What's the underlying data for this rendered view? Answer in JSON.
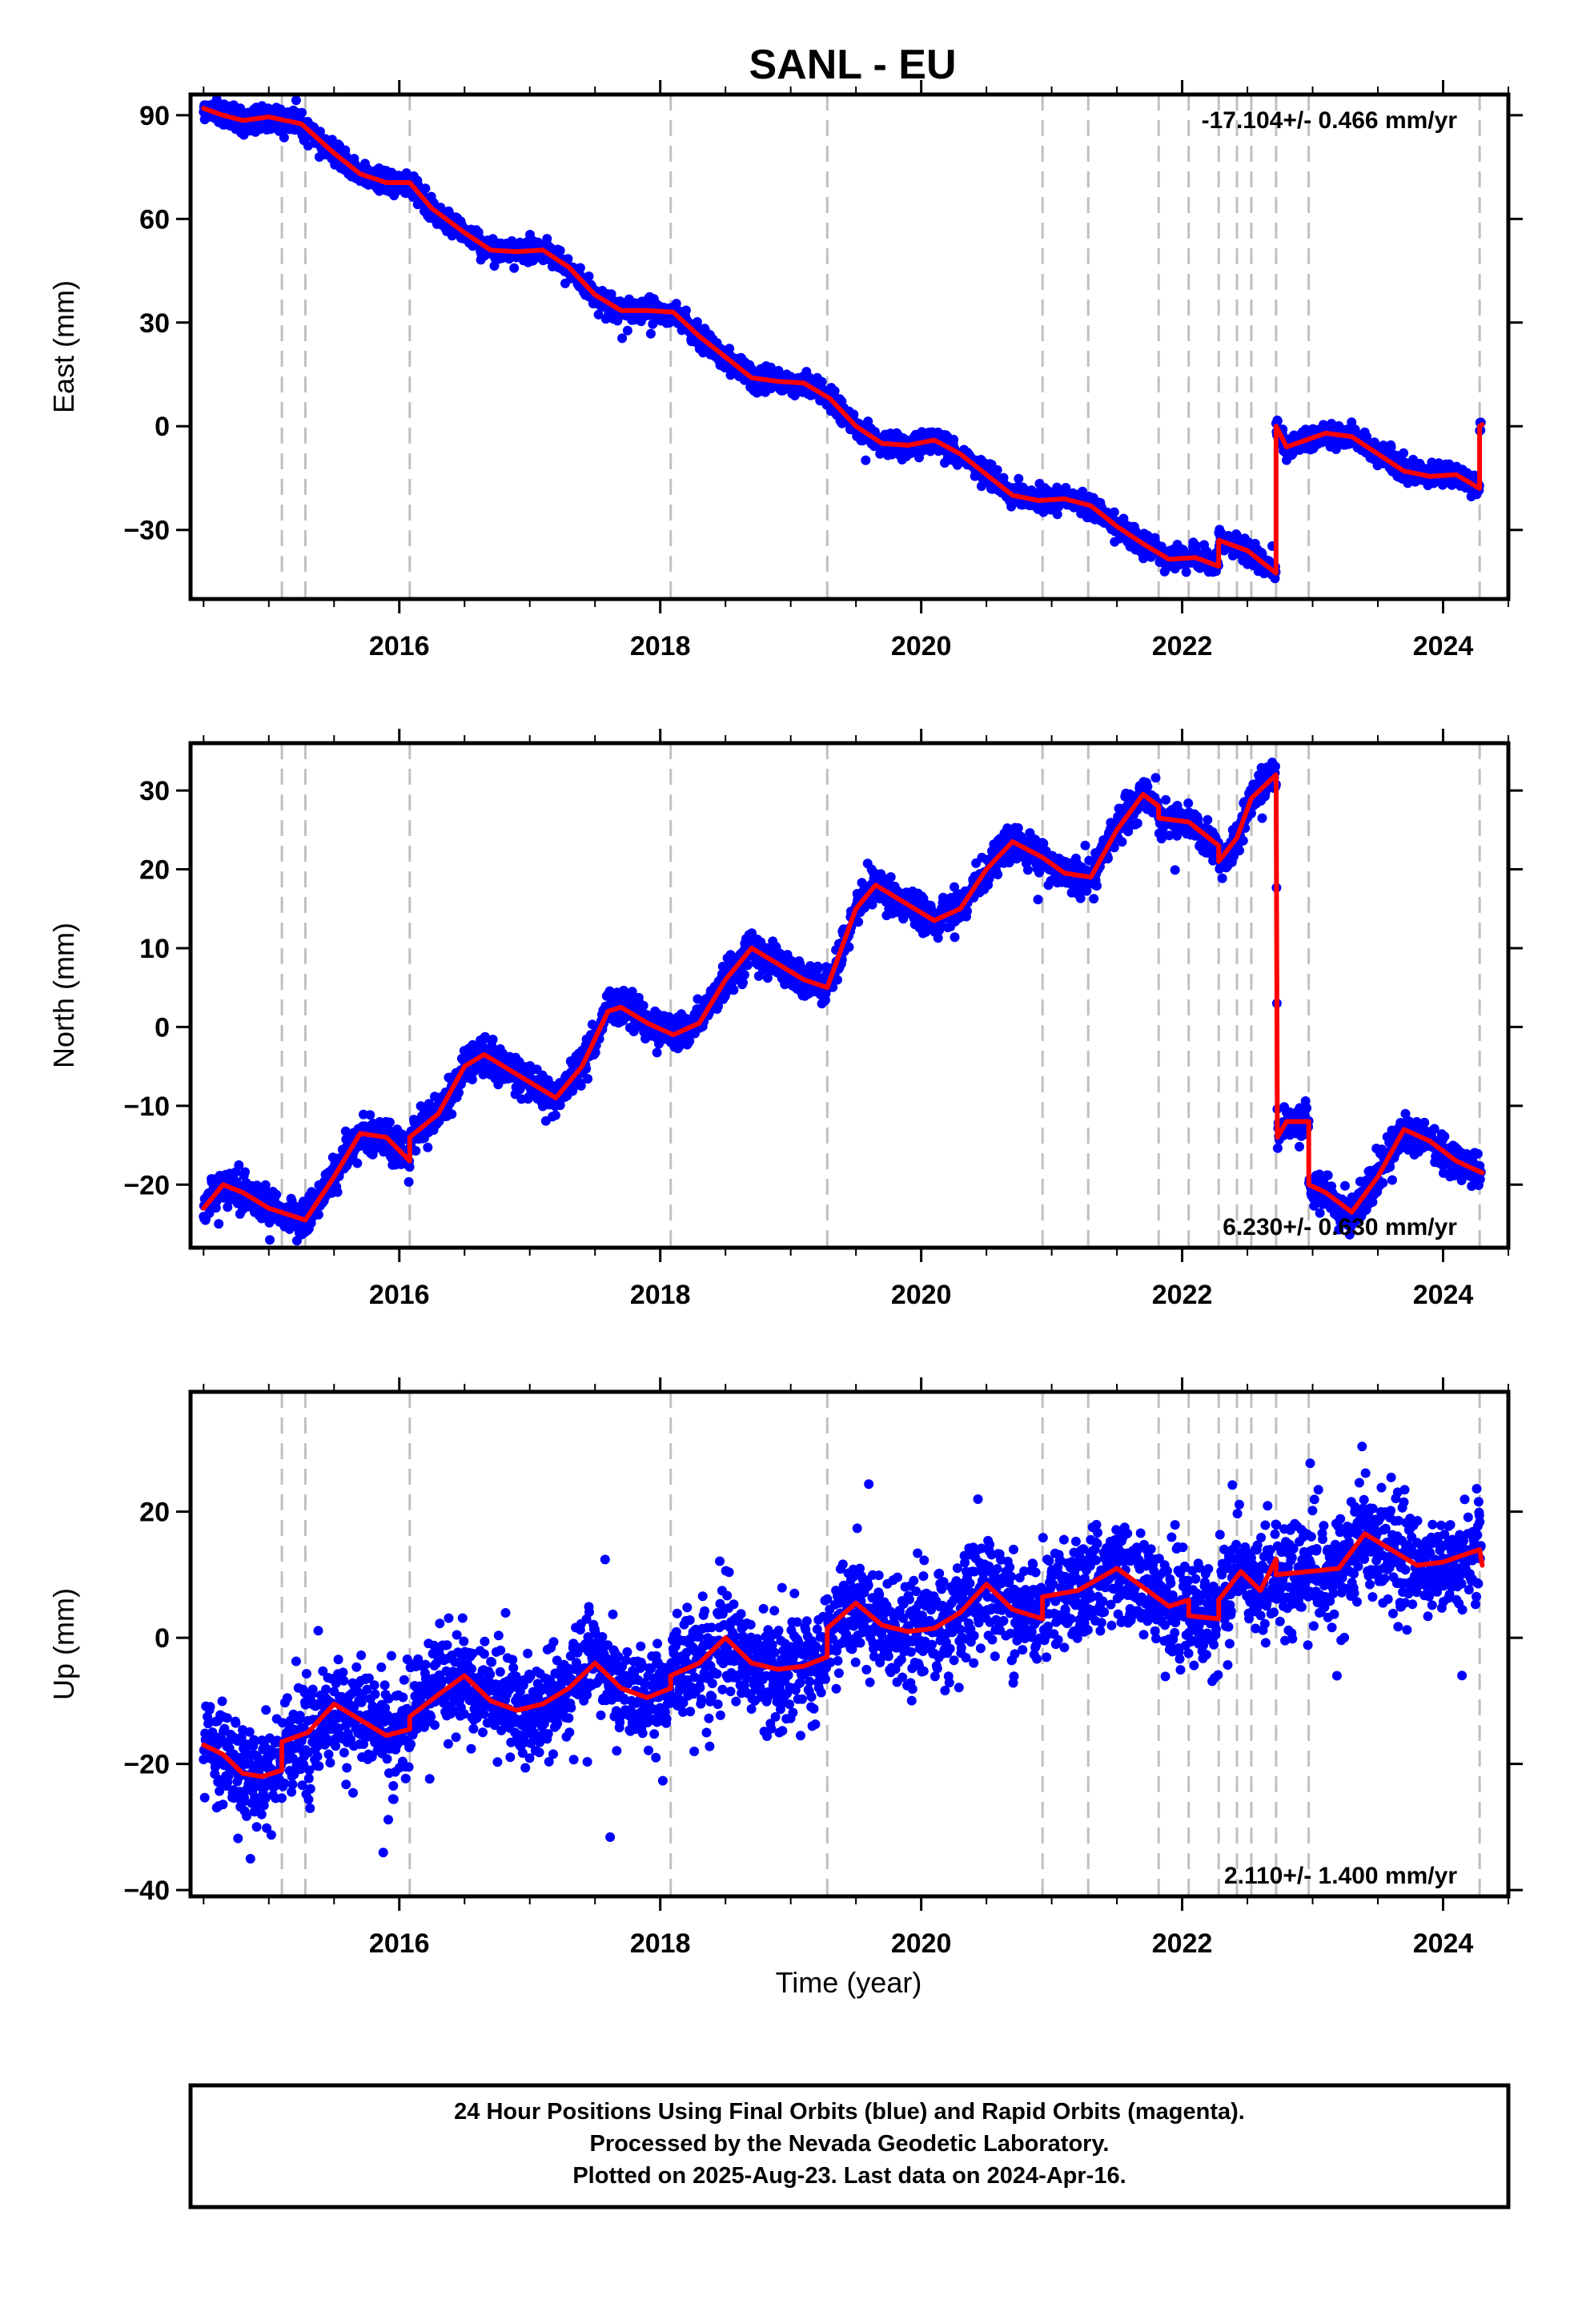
{
  "title": "SANL - EU",
  "x_axis_label": "Time (year)",
  "footer": [
    "24 Hour Positions Using Final Orbits (blue) and Rapid Orbits (magenta).",
    "Processed by the Nevada Geodetic Laboratory.",
    "Plotted on 2025-Aug-23. Last data on 2024-Apr-16."
  ],
  "colors": {
    "points": "#0000ff",
    "model": "#ff0000",
    "event_lines": "#c0c0c0",
    "frame": "#000000"
  },
  "chart_data": [
    {
      "type": "scatter",
      "component": "East",
      "ylabel": "East (mm)",
      "rate": "-17.104+/- 0.466 mm/yr",
      "rate_position": "top-right",
      "xlim": [
        2014.4,
        2024.5
      ],
      "ylim": [
        -50,
        96
      ],
      "x_ticks": [
        2016,
        2018,
        2020,
        2022,
        2024
      ],
      "y_ticks": [
        -30,
        0,
        30,
        60,
        90
      ],
      "scatter_sd": 1.6,
      "event_lines": [
        2015.1,
        2015.28,
        2016.08,
        2018.08,
        2019.28,
        2020.93,
        2021.28,
        2021.82,
        2022.05,
        2022.28,
        2022.42,
        2022.53,
        2022.72,
        2022.97,
        2024.28
      ],
      "model": [
        [
          2014.5,
          92
        ],
        [
          2014.65,
          90
        ],
        [
          2014.8,
          88.5
        ],
        [
          2015.0,
          89.5
        ],
        [
          2015.25,
          87.5
        ],
        [
          2015.5,
          79
        ],
        [
          2015.7,
          73
        ],
        [
          2015.9,
          70.5
        ],
        [
          2016.08,
          70.5
        ],
        [
          2016.25,
          63
        ],
        [
          2016.5,
          56
        ],
        [
          2016.7,
          51
        ],
        [
          2016.9,
          50.5
        ],
        [
          2017.1,
          51
        ],
        [
          2017.3,
          46
        ],
        [
          2017.5,
          38
        ],
        [
          2017.7,
          33.5
        ],
        [
          2017.9,
          33.5
        ],
        [
          2018.1,
          33
        ],
        [
          2018.3,
          26
        ],
        [
          2018.5,
          20
        ],
        [
          2018.7,
          14
        ],
        [
          2018.9,
          13
        ],
        [
          2019.1,
          12.5
        ],
        [
          2019.3,
          8
        ],
        [
          2019.5,
          0
        ],
        [
          2019.7,
          -5
        ],
        [
          2019.9,
          -5.5
        ],
        [
          2020.1,
          -4
        ],
        [
          2020.3,
          -8
        ],
        [
          2020.5,
          -14
        ],
        [
          2020.7,
          -20
        ],
        [
          2020.9,
          -21.5
        ],
        [
          2021.1,
          -21
        ],
        [
          2021.3,
          -23
        ],
        [
          2021.5,
          -29
        ],
        [
          2021.7,
          -34
        ],
        [
          2021.9,
          -38.5
        ],
        [
          2022.1,
          -38
        ],
        [
          2022.28,
          -40.5
        ],
        [
          2022.28,
          -33
        ],
        [
          2022.5,
          -36
        ],
        [
          2022.72,
          -42.5
        ],
        [
          2022.72,
          0
        ],
        [
          2022.8,
          -6
        ],
        [
          2022.95,
          -4
        ],
        [
          2023.1,
          -2
        ],
        [
          2023.3,
          -3
        ],
        [
          2023.5,
          -8
        ],
        [
          2023.7,
          -13
        ],
        [
          2023.9,
          -14.5
        ],
        [
          2024.1,
          -14
        ],
        [
          2024.28,
          -18
        ],
        [
          2024.28,
          0
        ],
        [
          2024.3,
          0.5
        ]
      ]
    },
    {
      "type": "scatter",
      "component": "North",
      "ylabel": "North (mm)",
      "rate": "6.230+/- 0.630 mm/yr",
      "rate_position": "bottom-right",
      "xlim": [
        2014.4,
        2024.5
      ],
      "ylim": [
        -28,
        36
      ],
      "x_ticks": [
        2016,
        2018,
        2020,
        2022,
        2024
      ],
      "y_ticks": [
        -20,
        -10,
        0,
        10,
        20,
        30
      ],
      "scatter_sd": 1.1,
      "event_lines": [
        2015.1,
        2015.28,
        2016.08,
        2018.08,
        2019.28,
        2020.93,
        2021.28,
        2021.82,
        2022.05,
        2022.28,
        2022.42,
        2022.53,
        2022.72,
        2022.97,
        2024.28
      ],
      "model": [
        [
          2014.5,
          -23
        ],
        [
          2014.65,
          -20
        ],
        [
          2014.8,
          -21
        ],
        [
          2015.0,
          -23
        ],
        [
          2015.28,
          -24.5
        ],
        [
          2015.5,
          -19
        ],
        [
          2015.7,
          -13.5
        ],
        [
          2015.9,
          -14
        ],
        [
          2016.08,
          -17
        ],
        [
          2016.08,
          -14
        ],
        [
          2016.3,
          -11
        ],
        [
          2016.5,
          -5
        ],
        [
          2016.65,
          -3.5
        ],
        [
          2016.9,
          -6
        ],
        [
          2017.2,
          -9
        ],
        [
          2017.4,
          -5
        ],
        [
          2017.6,
          2
        ],
        [
          2017.7,
          2.5
        ],
        [
          2017.9,
          0.5
        ],
        [
          2018.1,
          -1
        ],
        [
          2018.3,
          0.5
        ],
        [
          2018.5,
          6
        ],
        [
          2018.7,
          10
        ],
        [
          2018.9,
          8
        ],
        [
          2019.1,
          6
        ],
        [
          2019.28,
          5
        ],
        [
          2019.5,
          15
        ],
        [
          2019.65,
          18
        ],
        [
          2019.9,
          15.5
        ],
        [
          2020.1,
          13.5
        ],
        [
          2020.3,
          15
        ],
        [
          2020.5,
          20
        ],
        [
          2020.7,
          23.5
        ],
        [
          2020.93,
          21.5
        ],
        [
          2021.1,
          19.5
        ],
        [
          2021.3,
          19
        ],
        [
          2021.5,
          25
        ],
        [
          2021.7,
          29.5
        ],
        [
          2021.82,
          28
        ],
        [
          2021.82,
          26.5
        ],
        [
          2022.05,
          26
        ],
        [
          2022.28,
          23
        ],
        [
          2022.28,
          21
        ],
        [
          2022.42,
          24
        ],
        [
          2022.53,
          29
        ],
        [
          2022.72,
          32
        ],
        [
          2022.73,
          -14
        ],
        [
          2022.8,
          -12
        ],
        [
          2022.97,
          -12
        ],
        [
          2022.97,
          -20
        ],
        [
          2023.1,
          -21
        ],
        [
          2023.3,
          -23.5
        ],
        [
          2023.5,
          -19
        ],
        [
          2023.7,
          -13
        ],
        [
          2023.9,
          -14.5
        ],
        [
          2024.1,
          -17
        ],
        [
          2024.3,
          -18.5
        ]
      ]
    },
    {
      "type": "scatter",
      "component": "Up",
      "ylabel": "Up (mm)",
      "rate": "2.110+/- 1.400 mm/yr",
      "rate_position": "bottom-right",
      "xlim": [
        2014.4,
        2024.5
      ],
      "ylim": [
        -41,
        39
      ],
      "x_ticks": [
        2016,
        2018,
        2020,
        2022,
        2024
      ],
      "y_ticks": [
        -40,
        -20,
        0,
        20
      ],
      "scatter_sd": 4.2,
      "event_lines": [
        2015.1,
        2015.28,
        2016.08,
        2018.08,
        2019.28,
        2020.93,
        2021.28,
        2021.82,
        2022.05,
        2022.28,
        2022.42,
        2022.53,
        2022.72,
        2022.97,
        2024.28
      ],
      "model": [
        [
          2014.5,
          -17
        ],
        [
          2014.65,
          -18.5
        ],
        [
          2014.8,
          -21.5
        ],
        [
          2014.95,
          -22
        ],
        [
          2015.1,
          -21
        ],
        [
          2015.1,
          -16.5
        ],
        [
          2015.3,
          -15
        ],
        [
          2015.5,
          -10.5
        ],
        [
          2015.7,
          -13
        ],
        [
          2015.9,
          -15.5
        ],
        [
          2016.08,
          -14.5
        ],
        [
          2016.08,
          -12.5
        ],
        [
          2016.3,
          -9
        ],
        [
          2016.5,
          -6
        ],
        [
          2016.7,
          -10
        ],
        [
          2016.9,
          -11.5
        ],
        [
          2017.1,
          -10.5
        ],
        [
          2017.3,
          -8
        ],
        [
          2017.5,
          -4
        ],
        [
          2017.7,
          -8
        ],
        [
          2017.9,
          -9.5
        ],
        [
          2018.08,
          -8
        ],
        [
          2018.08,
          -6
        ],
        [
          2018.3,
          -4
        ],
        [
          2018.5,
          0
        ],
        [
          2018.7,
          -4
        ],
        [
          2018.9,
          -5
        ],
        [
          2019.1,
          -4.5
        ],
        [
          2019.28,
          -3
        ],
        [
          2019.28,
          1.5
        ],
        [
          2019.5,
          5.5
        ],
        [
          2019.7,
          2
        ],
        [
          2019.9,
          1
        ],
        [
          2020.1,
          1.5
        ],
        [
          2020.3,
          4
        ],
        [
          2020.5,
          8.5
        ],
        [
          2020.7,
          4.5
        ],
        [
          2020.93,
          3
        ],
        [
          2020.93,
          6.5
        ],
        [
          2021.2,
          7.5
        ],
        [
          2021.5,
          11
        ],
        [
          2021.7,
          8
        ],
        [
          2021.9,
          5
        ],
        [
          2022.05,
          6
        ],
        [
          2022.05,
          3.5
        ],
        [
          2022.28,
          3
        ],
        [
          2022.28,
          6
        ],
        [
          2022.45,
          10.5
        ],
        [
          2022.6,
          7.5
        ],
        [
          2022.72,
          12.5
        ],
        [
          2022.72,
          10
        ],
        [
          2022.97,
          10.5
        ],
        [
          2023.2,
          11
        ],
        [
          2023.4,
          16.5
        ],
        [
          2023.6,
          14
        ],
        [
          2023.8,
          11.5
        ],
        [
          2024.0,
          12
        ],
        [
          2024.28,
          14
        ],
        [
          2024.3,
          11.5
        ]
      ]
    }
  ]
}
